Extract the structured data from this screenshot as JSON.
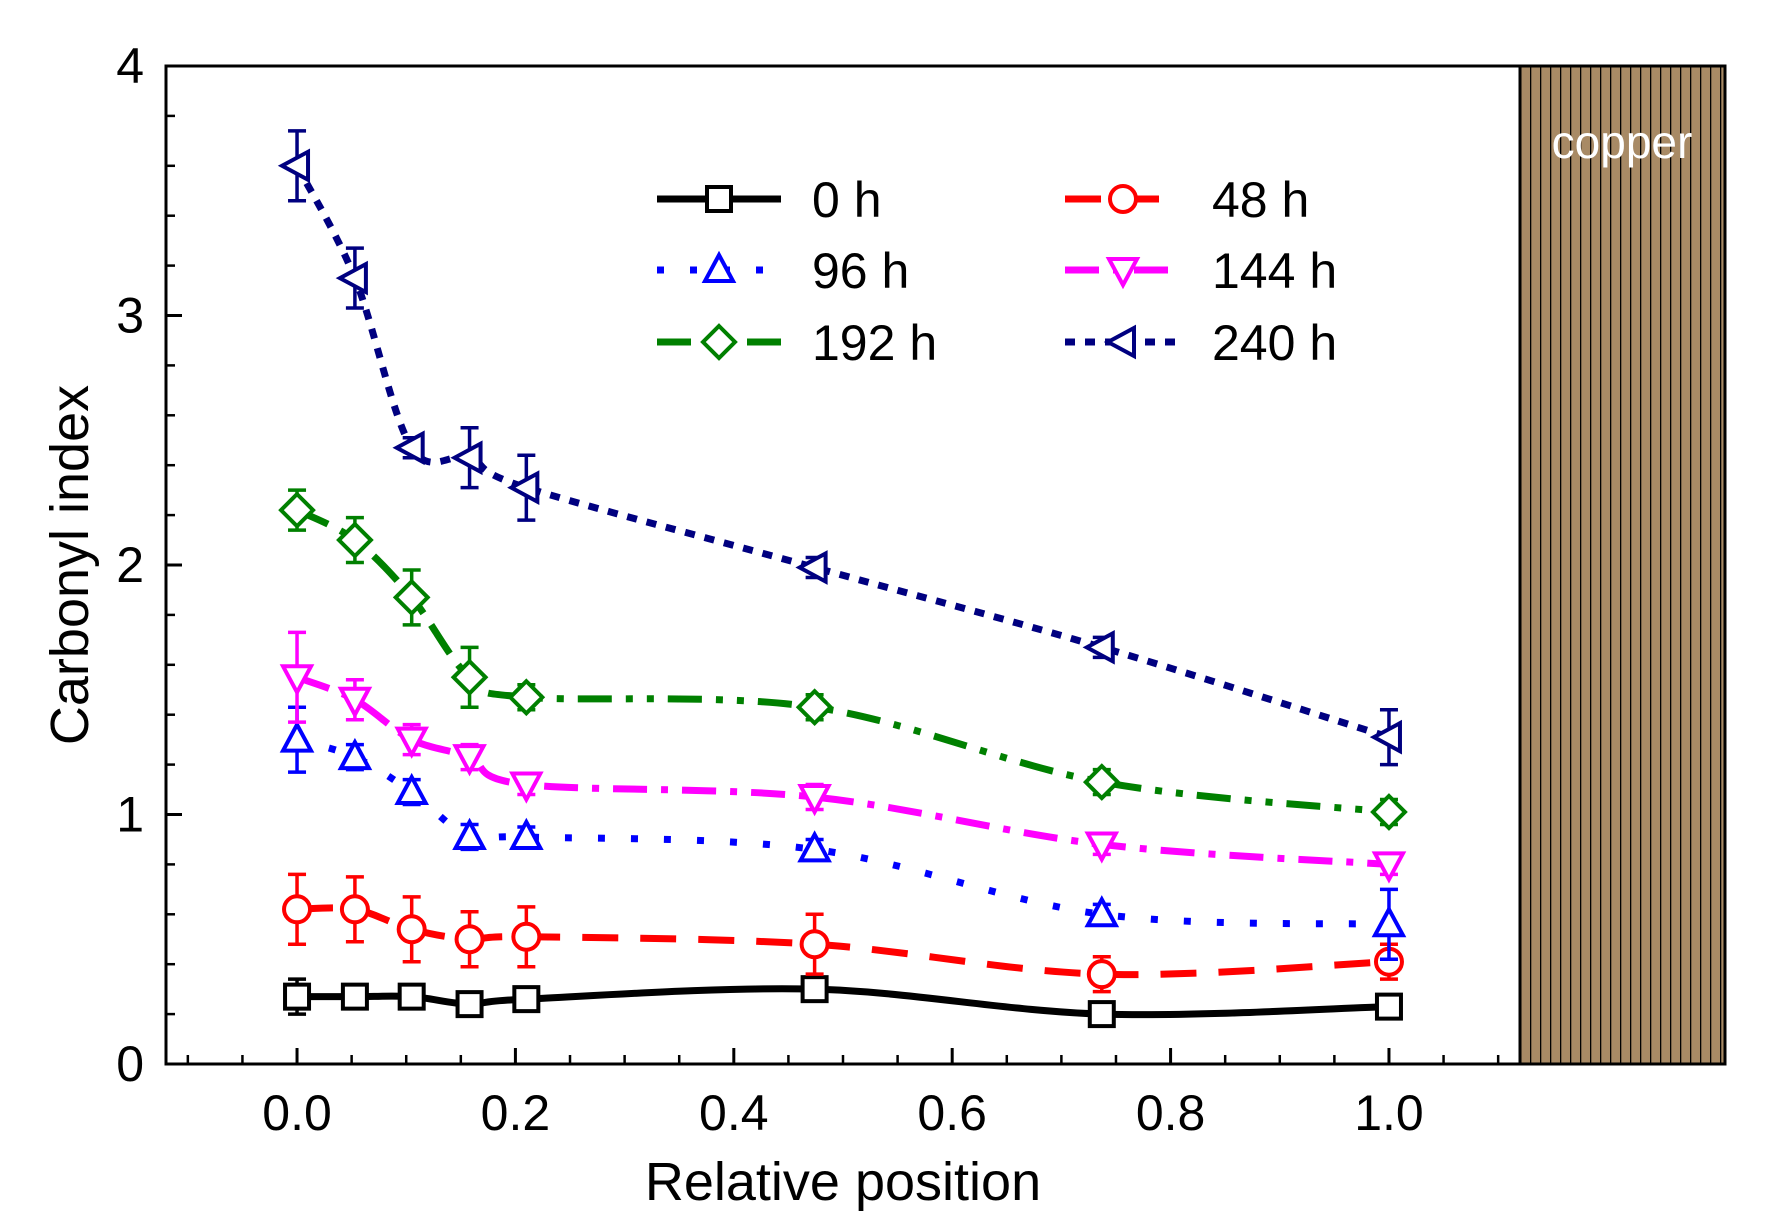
{
  "chart_data": {
    "type": "line",
    "title": "",
    "xlabel": "Relative position",
    "ylabel": "Carbonyl index",
    "xlim": [
      -0.12,
      1.12
    ],
    "ylim": [
      0,
      4
    ],
    "xticks": [
      0.0,
      0.2,
      0.4,
      0.6,
      0.8,
      1.0
    ],
    "xtick_labels": [
      "0.0",
      "0.2",
      "0.4",
      "0.6",
      "0.8",
      "1.0"
    ],
    "yticks": [
      0,
      1,
      2,
      3,
      4
    ],
    "ytick_labels": [
      "0",
      "1",
      "2",
      "3",
      "4"
    ],
    "x": [
      0.0,
      0.053,
      0.105,
      0.158,
      0.21,
      0.474,
      0.737,
      1.0
    ],
    "region_label": "copper",
    "region_color": "#a88a65",
    "legend_position": "top-center",
    "series": [
      {
        "name": "0 h",
        "color": "#000000",
        "marker": "square",
        "line": "solid",
        "values": [
          0.27,
          0.27,
          0.27,
          0.24,
          0.26,
          0.3,
          0.2,
          0.23
        ],
        "errors": [
          0.07,
          0.03,
          0.03,
          0.03,
          0.03,
          0.03,
          0.03,
          0.03
        ]
      },
      {
        "name": "48 h",
        "color": "#ff0000",
        "marker": "circle",
        "line": "dash",
        "values": [
          0.62,
          0.62,
          0.54,
          0.5,
          0.51,
          0.48,
          0.36,
          0.41
        ],
        "errors": [
          0.14,
          0.13,
          0.13,
          0.11,
          0.12,
          0.12,
          0.07,
          0.07
        ]
      },
      {
        "name": "96 h",
        "color": "#0000ff",
        "marker": "triangle-up",
        "line": "dot",
        "values": [
          1.3,
          1.23,
          1.09,
          0.91,
          0.91,
          0.86,
          0.6,
          0.56
        ],
        "errors": [
          0.13,
          0.05,
          0.05,
          0.05,
          0.04,
          0.04,
          0.04,
          0.14
        ]
      },
      {
        "name": "144 h",
        "color": "#ff00ff",
        "marker": "triangle-down",
        "line": "dashdot",
        "values": [
          1.55,
          1.46,
          1.3,
          1.23,
          1.12,
          1.07,
          0.88,
          0.8
        ],
        "errors": [
          0.18,
          0.08,
          0.06,
          0.05,
          0.04,
          0.05,
          0.04,
          0.04
        ]
      },
      {
        "name": "192 h",
        "color": "#008000",
        "marker": "diamond",
        "line": "dashdotdot",
        "values": [
          2.22,
          2.1,
          1.87,
          1.55,
          1.47,
          1.43,
          1.13,
          1.01
        ],
        "errors": [
          0.08,
          0.09,
          0.11,
          0.12,
          0.05,
          0.05,
          0.05,
          0.05
        ]
      },
      {
        "name": "240 h",
        "color": "#000080",
        "marker": "triangle-left",
        "line": "shortdot",
        "values": [
          3.6,
          3.15,
          2.47,
          2.43,
          2.31,
          1.99,
          1.67,
          1.31
        ],
        "errors": [
          0.14,
          0.12,
          0.04,
          0.12,
          0.13,
          0.04,
          0.04,
          0.11
        ]
      }
    ]
  }
}
